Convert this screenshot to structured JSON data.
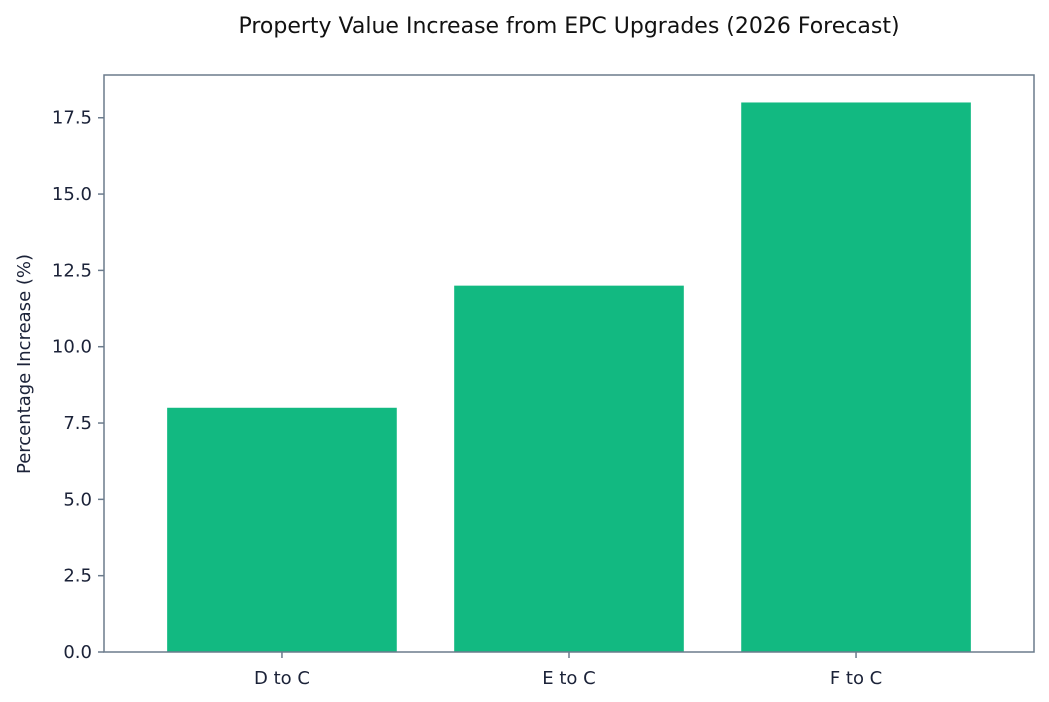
{
  "chart_data": {
    "type": "bar",
    "title": "Property Value Increase from EPC Upgrades (2026 Forecast)",
    "xlabel": "",
    "ylabel": "Percentage Increase (%)",
    "categories": [
      "D to C",
      "E to C",
      "F to C"
    ],
    "values": [
      8,
      12,
      18
    ],
    "ylim": [
      0,
      18.9
    ],
    "yticks": [
      "0.0",
      "2.5",
      "5.0",
      "7.5",
      "10.0",
      "12.5",
      "15.0",
      "17.5"
    ],
    "grid": false,
    "legend": "none",
    "colors": {
      "bar": "#12b981",
      "axis": "#6b7b8c",
      "text": "#1b2238"
    }
  }
}
